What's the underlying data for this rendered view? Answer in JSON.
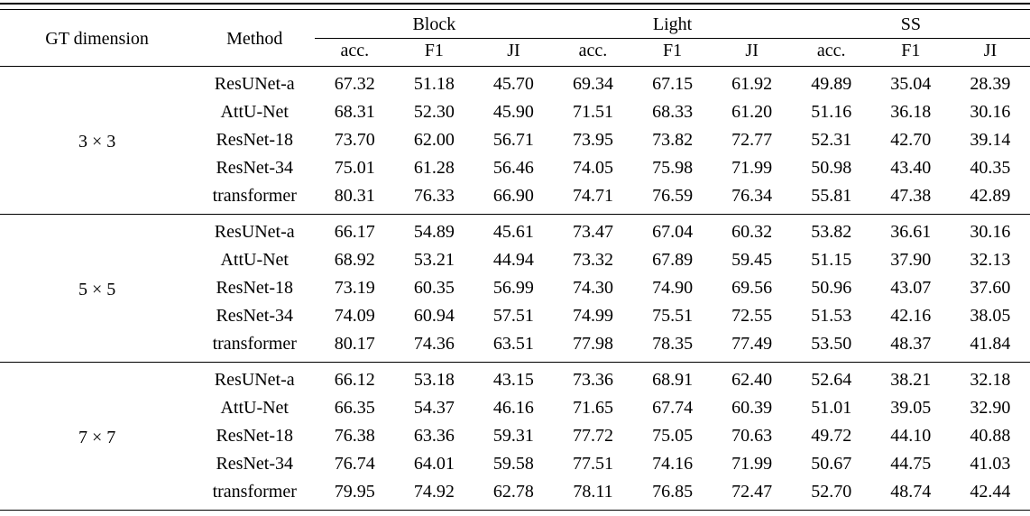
{
  "table": {
    "header": {
      "gt_dimension": "GT dimension",
      "method": "Method",
      "groups": [
        "Block",
        "Light",
        "SS"
      ],
      "metrics": [
        "acc.",
        "F1",
        "JI"
      ]
    },
    "sections": [
      {
        "dimension": "3 × 3",
        "rows": [
          {
            "method": "ResUNet-a",
            "bold": false,
            "values": [
              "67.32",
              "51.18",
              "45.70",
              "69.34",
              "67.15",
              "61.92",
              "49.89",
              "35.04",
              "28.39"
            ]
          },
          {
            "method": "AttU-Net",
            "bold": false,
            "values": [
              "68.31",
              "52.30",
              "45.90",
              "71.51",
              "68.33",
              "61.20",
              "51.16",
              "36.18",
              "30.16"
            ]
          },
          {
            "method": "ResNet-18",
            "bold": false,
            "values": [
              "73.70",
              "62.00",
              "56.71",
              "73.95",
              "73.82",
              "72.77",
              "52.31",
              "42.70",
              "39.14"
            ]
          },
          {
            "method": "ResNet-34",
            "bold": false,
            "values": [
              "75.01",
              "61.28",
              "56.46",
              "74.05",
              "75.98",
              "71.99",
              "50.98",
              "43.40",
              "40.35"
            ]
          },
          {
            "method": "transformer",
            "bold": true,
            "values": [
              "80.31",
              "76.33",
              "66.90",
              "74.71",
              "76.59",
              "76.34",
              "55.81",
              "47.38",
              "42.89"
            ]
          }
        ]
      },
      {
        "dimension": "5 × 5",
        "rows": [
          {
            "method": "ResUNet-a",
            "bold": false,
            "values": [
              "66.17",
              "54.89",
              "45.61",
              "73.47",
              "67.04",
              "60.32",
              "53.82",
              "36.61",
              "30.16"
            ]
          },
          {
            "method": "AttU-Net",
            "bold": false,
            "values": [
              "68.92",
              "53.21",
              "44.94",
              "73.32",
              "67.89",
              "59.45",
              "51.15",
              "37.90",
              "32.13"
            ]
          },
          {
            "method": "ResNet-18",
            "bold": false,
            "values": [
              "73.19",
              "60.35",
              "56.99",
              "74.30",
              "74.90",
              "69.56",
              "50.96",
              "43.07",
              "37.60"
            ]
          },
          {
            "method": "ResNet-34",
            "bold": false,
            "values": [
              "74.09",
              "60.94",
              "57.51",
              "74.99",
              "75.51",
              "72.55",
              "51.53",
              "42.16",
              "38.05"
            ]
          },
          {
            "method": "transformer",
            "bold": true,
            "values": [
              "80.17",
              "74.36",
              "63.51",
              "77.98",
              "78.35",
              "77.49",
              "53.50",
              "48.37",
              "41.84"
            ]
          }
        ]
      },
      {
        "dimension": "7 × 7",
        "rows": [
          {
            "method": "ResUNet-a",
            "bold": false,
            "values": [
              "66.12",
              "53.18",
              "43.15",
              "73.36",
              "68.91",
              "62.40",
              "52.64",
              "38.21",
              "32.18"
            ]
          },
          {
            "method": "AttU-Net",
            "bold": false,
            "values": [
              "66.35",
              "54.37",
              "46.16",
              "71.65",
              "67.74",
              "60.39",
              "51.01",
              "39.05",
              "32.90"
            ]
          },
          {
            "method": "ResNet-18",
            "bold": false,
            "values": [
              "76.38",
              "63.36",
              "59.31",
              "77.72",
              "75.05",
              "70.63",
              "49.72",
              "44.10",
              "40.88"
            ]
          },
          {
            "method": "ResNet-34",
            "bold": false,
            "values": [
              "76.74",
              "64.01",
              "59.58",
              "77.51",
              "74.16",
              "71.99",
              "50.67",
              "44.75",
              "41.03"
            ]
          },
          {
            "method": "transformer",
            "bold": true,
            "values": [
              "79.95",
              "74.92",
              "62.78",
              "78.11",
              "76.85",
              "72.47",
              "52.70",
              "48.74",
              "42.44"
            ]
          }
        ]
      }
    ]
  }
}
